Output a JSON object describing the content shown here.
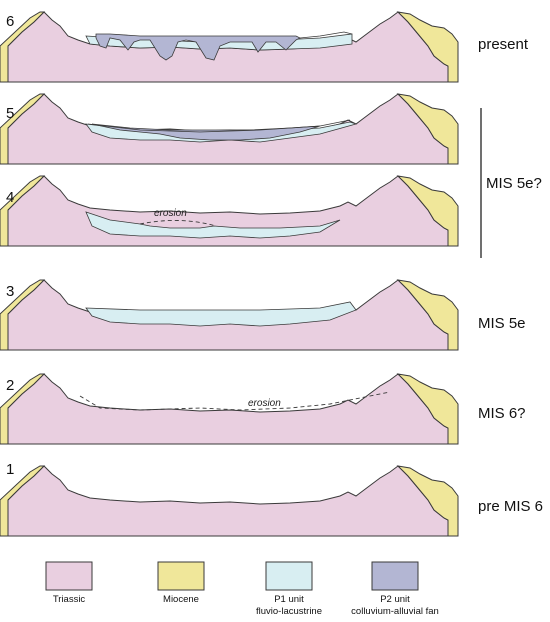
{
  "stages": [
    {
      "number": "6",
      "label": "present"
    },
    {
      "number": "5",
      "label": ""
    },
    {
      "number": "4",
      "label": ""
    },
    {
      "number": "3",
      "label": "MIS 5e"
    },
    {
      "number": "2",
      "label": "MIS 6?"
    },
    {
      "number": "1",
      "label": "pre MIS 6"
    }
  ],
  "bracket_label": "MIS 5e?",
  "erosion_label": "erosion",
  "legend": [
    {
      "name": "Triassic",
      "sub": "",
      "color": "#e9cfe0"
    },
    {
      "name": "Miocene",
      "sub": "",
      "color": "#f0e79a"
    },
    {
      "name": "P1 unit",
      "sub": "fluvio-lacustrine",
      "color": "#d8eef2"
    },
    {
      "name": "P2 unit",
      "sub": "colluvium-alluvial fan",
      "color": "#b3b6d3"
    }
  ],
  "colors": {
    "triassic": "#e9cfe0",
    "miocene": "#f0e79a",
    "p1": "#d8eef2",
    "p2": "#b3b6d3",
    "outline": "#3a3a3a"
  }
}
